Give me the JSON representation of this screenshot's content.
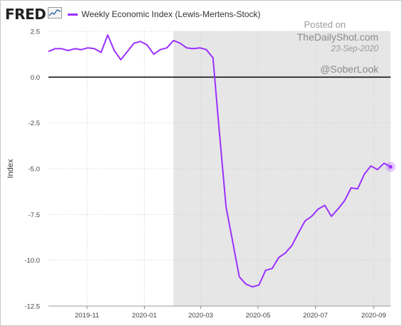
{
  "header": {
    "logo_text": "FRED",
    "legend_label": "Weekly Economic Index (Lewis-Mertens-Stock)"
  },
  "watermark": {
    "line1": "Posted on",
    "line2": "TheDailyShot.com",
    "line3": "23-Sep-2020",
    "handle": "@SoberLook"
  },
  "colors": {
    "series": "#9b30ff",
    "recession_shade": "#e6e6e6",
    "zero_line": "#000000",
    "grid": "#d0d0d0"
  },
  "chart_data": {
    "type": "line",
    "title": "Weekly Economic Index (Lewis-Mertens-Stock)",
    "ylabel": "Index",
    "xlabel": "",
    "ylim": [
      -12.5,
      2.5
    ],
    "y_ticks": [
      2.5,
      0.0,
      -2.5,
      -5.0,
      -7.5,
      -10.0,
      -12.5
    ],
    "y_tick_labels": [
      "2.5",
      "0.0",
      "-2.5",
      "-5.0",
      "-7.5",
      "-10.0",
      "-12.5"
    ],
    "x_range": [
      "2019-09-21",
      "2020-09-19"
    ],
    "x_ticks": [
      "2019-11-01",
      "2020-01-01",
      "2020-03-01",
      "2020-05-01",
      "2020-07-01",
      "2020-09-01"
    ],
    "x_tick_labels": [
      "2019-11",
      "2020-01",
      "2020-03",
      "2020-05",
      "2020-07",
      "2020-09"
    ],
    "shaded_region": [
      "2020-02-01",
      "2020-09-19"
    ],
    "grid": true,
    "legend_position": "top",
    "series": [
      {
        "name": "Weekly Economic Index (Lewis-Mertens-Stock)",
        "x": [
          "2019-09-21",
          "2019-09-28",
          "2019-10-05",
          "2019-10-12",
          "2019-10-19",
          "2019-10-26",
          "2019-11-02",
          "2019-11-09",
          "2019-11-16",
          "2019-11-23",
          "2019-11-30",
          "2019-12-07",
          "2019-12-14",
          "2019-12-21",
          "2019-12-28",
          "2020-01-04",
          "2020-01-11",
          "2020-01-18",
          "2020-01-25",
          "2020-02-01",
          "2020-02-08",
          "2020-02-15",
          "2020-02-22",
          "2020-02-29",
          "2020-03-07",
          "2020-03-14",
          "2020-03-21",
          "2020-03-28",
          "2020-04-04",
          "2020-04-11",
          "2020-04-18",
          "2020-04-25",
          "2020-05-02",
          "2020-05-09",
          "2020-05-16",
          "2020-05-23",
          "2020-05-30",
          "2020-06-06",
          "2020-06-13",
          "2020-06-20",
          "2020-06-27",
          "2020-07-04",
          "2020-07-11",
          "2020-07-18",
          "2020-07-25",
          "2020-08-01",
          "2020-08-08",
          "2020-08-15",
          "2020-08-22",
          "2020-08-29",
          "2020-09-05",
          "2020-09-12",
          "2020-09-19"
        ],
        "values": [
          1.4,
          1.55,
          1.55,
          1.45,
          1.55,
          1.5,
          1.6,
          1.55,
          1.35,
          2.3,
          1.45,
          0.95,
          1.4,
          1.85,
          1.95,
          1.75,
          1.25,
          1.5,
          1.6,
          2.0,
          1.85,
          1.6,
          1.55,
          1.6,
          1.5,
          1.05,
          -3.1,
          -7.1,
          -9.0,
          -10.9,
          -11.3,
          -11.45,
          -11.35,
          -10.55,
          -10.45,
          -9.85,
          -9.6,
          -9.2,
          -8.5,
          -7.85,
          -7.6,
          -7.2,
          -7.0,
          -7.6,
          -7.2,
          -6.75,
          -6.05,
          -6.1,
          -5.3,
          -4.85,
          -5.05,
          -4.7,
          -4.9
        ]
      }
    ]
  }
}
